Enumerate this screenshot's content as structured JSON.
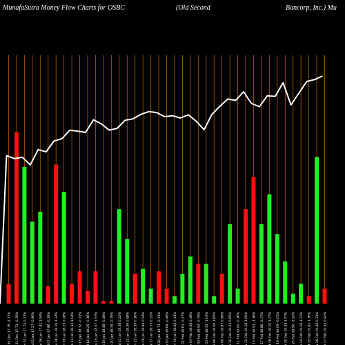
{
  "header": {
    "title": "MunafaSutra  Money Flow  Charts for OSBC",
    "company": "(Old Second",
    "company_rest": "Bancorp, Inc.) Mu"
  },
  "colors": {
    "background": "#000000",
    "gridline": "#b8600a",
    "up_bar": "#22ee22",
    "down_bar": "#ff1111",
    "line": "#ffffff",
    "axis_label": "#ffffff"
  },
  "chart_data": {
    "type": "bar",
    "title": "",
    "xlabel": "",
    "ylabel": "",
    "grid": "vertical gridlines only",
    "legend": "none",
    "ylim": [
      0,
      100
    ],
    "categories": [
      "Fri 27 Feb 2026",
      "Thu 26 Feb 2026",
      "Wed 25 Feb 2026",
      "Tue 24 Feb 2026",
      "Mon 23 Feb 2026",
      "Fri 20 Feb 2026",
      "Thu 19 Feb 2026",
      "Wed 18 Feb 2026",
      "Tue 17 Feb 2026",
      "Fri 13 Feb 2026",
      "Thu 12 Feb 2026",
      "Wed 11 Feb 2026",
      "Tue 10 Feb 2026",
      "Mon 09 Feb 2026",
      "Fri 06 Feb 2026",
      "Thu 05 Feb 2026",
      "Wed 04 Feb 2026",
      "Tue 03 Feb 2026",
      "Mon 02 Feb 2026",
      "Fri 30 Jan 2026",
      "Thu 29 Jan 2026",
      "Wed 28 Jan 2026",
      "Tue 27 Jan 2026",
      "Mon 26 Jan 2026",
      "Fri 23 Jan 2026",
      "Thu 22 Jan 2026",
      "Wed 21 Jan 2026",
      "Tue 20 Jan 2026",
      "Fri 16 Jan 2026",
      "Thu 15 Jan 2026",
      "Wed 14 Jan 2026",
      "Tue 13 Jan 2026",
      "Mon 12 Jan 2026",
      "Fri 09 Jan 2026",
      "Thu 08 Jan 2026",
      "Wed 07 Jan 2026",
      "Tue 06 Jan 2026",
      "Mon 05 Jan 2026",
      "Fri 02 Jan 2026",
      "Wed 31 Dec 2025",
      "Tue 30 Dec 2025"
    ],
    "x_tick_labels": [
      "Fri 27 Feb 19.54 0.42%",
      "Thu 26 Feb 19.46 0.21%",
      "Wed 25 Feb 19.42 1.36%",
      "Tue 24 Feb 19.16 1.37%",
      "Mon 23 Feb 18.90 -2.52%",
      "Fri 20 Feb 19.39 1.57%",
      "Thu 19 Feb 19.09 -0.05%",
      "Wed 18 Feb 19.10 1.27%",
      "Tue 17 Feb 18.86 -0.37%",
      "Fri 13 Feb 18.93 -1.36%",
      "Thu 12 Feb 19.19 1.00%",
      "Wed 11 Feb 19.00 -0.16%",
      "Tue 10 Feb 19.03 0.85%",
      "Mon 09 Feb 18.87 0.96%",
      "Fri 06 Feb 18.69 1.85%",
      "Thu 05 Feb 18.35 -1.03%",
      "Wed 04 Feb 18.54 -0.75%",
      "Tue 03 Feb 18.68 0.38%",
      "Mon 02 Feb 18.61 -0.27%",
      "Fri 30 Jan 18.66 0.11%",
      "Thu 29 Jan 18.64 -0.48%",
      "Wed 28 Jan 18.73 -0.11%",
      "Tue 27 Jan 18.75 0.32%",
      "Mon 26 Jan 18.69 0.54%",
      "Fri 23 Jan 18.59 0.16%",
      "Thu 22 Jan 18.56 0.98%",
      "Wed 21 Jan 18.38 0.22%",
      "Tue 20 Jan 18.34 -0.76%",
      "Fri 16 Jan 18.48 -0.48%",
      "Thu 15 Jan 18.57 1.53%",
      "Wed 14 Jan 18.29 -0.16%",
      "Tue 13 Jan 18.32 -0.11%",
      "Mon 12 Jan 18.34 1.04%",
      "Fri 09 Jan 18.15 0.28%",
      "Thu 08 Jan 18.10 1.34%",
      "Wed 07 Jan 17.86 -0.28%",
      "Tue 06 Jan 17.91 1.94%",
      "Mon 05 Jan 17.57 -0.96%",
      "Fri 02 Jan 17.74 0.17%",
      "Wed 31 Dec 17.71 -0.39%",
      "Tue 30 Dec 17.78 -1.17%"
    ],
    "series": [
      {
        "type": "bar",
        "values": [
          6,
          59,
          3,
          8,
          4,
          17,
          28,
          44,
          32,
          51,
          38,
          6,
          32,
          12,
          3,
          16,
          16,
          19,
          12,
          3,
          6,
          13,
          6,
          14,
          12,
          26,
          38,
          1,
          1,
          13,
          5,
          13,
          8,
          45,
          56,
          7,
          37,
          33,
          55,
          69,
          8
        ],
        "directions": [
          "down",
          "up",
          "down",
          "up",
          "up",
          "up",
          "up",
          "up",
          "up",
          "down",
          "down",
          "up",
          "up",
          "down",
          "up",
          "up",
          "down",
          "up",
          "up",
          "up",
          "down",
          "down",
          "up",
          "up",
          "down",
          "up",
          "up",
          "down",
          "down",
          "down",
          "down",
          "down",
          "down",
          "up",
          "down",
          "down",
          "up",
          "up",
          "up",
          "down",
          "down"
        ]
      },
      {
        "type": "line",
        "values": [
          19.54,
          19.46,
          19.42,
          19.16,
          18.9,
          19.39,
          19.09,
          19.1,
          18.86,
          18.93,
          19.19,
          19.0,
          19.03,
          18.87,
          18.69,
          18.35,
          18.54,
          18.68,
          18.61,
          18.66,
          18.64,
          18.73,
          18.75,
          18.69,
          18.59,
          18.56,
          18.38,
          18.34,
          18.48,
          18.57,
          18.29,
          18.32,
          18.34,
          18.15,
          18.1,
          17.86,
          17.91,
          17.57,
          17.74,
          17.71,
          17.78
        ],
        "ylim": [
          14.5,
          20
        ]
      }
    ]
  }
}
